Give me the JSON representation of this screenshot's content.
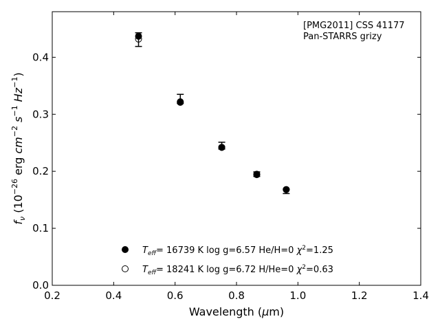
{
  "chart_data": {
    "type": "scatter",
    "annotation_lines": [
      "[PMG2011] CSS 41177",
      "Pan-STARRS grizy"
    ],
    "xlabel": "Wavelength (μm)",
    "ylabel": "fν (10⁻²⁶ erg cm⁻² s⁻¹ Hz⁻¹)",
    "xlim": [
      0.2,
      1.4
    ],
    "ylim": [
      0.0,
      0.48
    ],
    "xticks": [
      "0.2",
      "0.4",
      "0.6",
      "0.8",
      "1.0",
      "1.2",
      "1.4"
    ],
    "yticks": [
      "0.0",
      "0.1",
      "0.2",
      "0.3",
      "0.4"
    ],
    "grid": false,
    "legend_position": "lower-left",
    "observed": {
      "x": [
        0.481,
        0.617,
        0.752,
        0.866,
        0.962
      ],
      "y": [
        0.431,
        0.327,
        0.245,
        0.195,
        0.165
      ],
      "yerr": [
        0.012,
        0.008,
        0.006,
        0.004,
        0.004
      ]
    },
    "series": [
      {
        "name": "T_eff= 16739 K  log g=6.57  He/H=0  χ²=1.25",
        "marker": "filled-circle",
        "x": [
          0.481,
          0.617,
          0.752,
          0.866,
          0.962
        ],
        "y": [
          0.437,
          0.321,
          0.242,
          0.194,
          0.168
        ]
      },
      {
        "name": "T_eff= 18241 K  log g=6.72  H/He=0  χ²=0.63",
        "marker": "open-circle",
        "x": [
          0.481,
          0.617,
          0.752,
          0.866,
          0.962
        ],
        "y": [
          0.432,
          0.322,
          0.242,
          0.195,
          0.168
        ]
      }
    ]
  },
  "legend": [
    {
      "teff": "16739 K",
      "logg": "  log g=6.57",
      "comp": "  He/H=0",
      "chi_val": "=1.25"
    },
    {
      "teff": "18241 K",
      "logg": "  log g=6.72",
      "comp": "  H/He=0",
      "chi_val": "=0.63"
    }
  ],
  "labels": {
    "x_title": "Wavelength (",
    "x_unit": "m)",
    "y_f": "f",
    "y_nu": "ν",
    "y_open": " (10",
    "y_exp1": "−26",
    "y_erg": " erg ",
    "y_cm": "cm",
    "y_exp2": "−2",
    "y_s": " s",
    "y_exp3": "−1",
    "y_hz": " Hz",
    "y_exp4": "−1",
    "y_close": ")"
  }
}
